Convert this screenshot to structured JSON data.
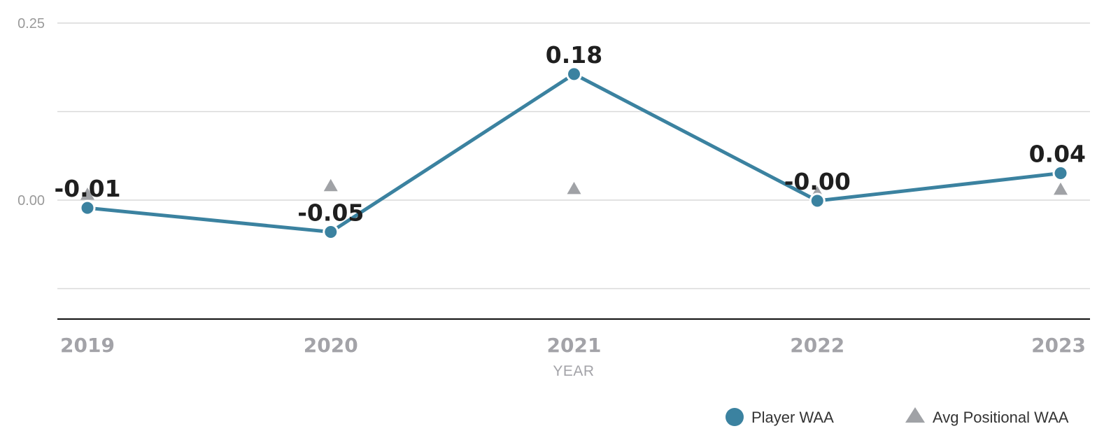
{
  "chart_data": {
    "type": "line",
    "xlabel": "YEAR",
    "ylabel": "",
    "ylim": [
      -0.168,
      0.25
    ],
    "yticks": [
      0.25,
      0.0
    ],
    "ytick_labels": [
      "0.25",
      "0.00"
    ],
    "categories": [
      "2019",
      "2020",
      "2021",
      "2022",
      "2023"
    ],
    "grid": true,
    "legend": "bottom-right",
    "series": [
      {
        "name": "Player WAA",
        "marker": "circle",
        "color": "#3b82a0",
        "values": [
          -0.011,
          -0.045,
          0.178,
          -0.001,
          0.038
        ],
        "labels": [
          "-0.01",
          "-0.05",
          "0.18",
          "-0.00",
          "0.04"
        ]
      },
      {
        "name": "Avg Positional WAA",
        "marker": "triangle",
        "color": "#a0a2a6",
        "values": [
          0.004,
          0.016,
          0.012,
          0.006,
          0.011
        ]
      }
    ]
  }
}
